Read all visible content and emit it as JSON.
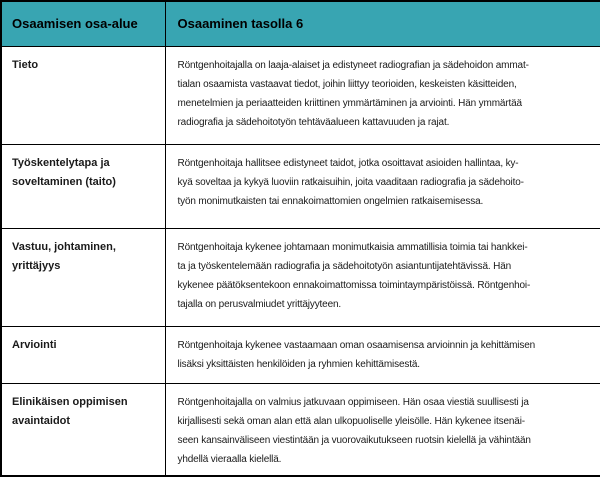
{
  "colors": {
    "header_bg": "#38A5B2",
    "border": "#000000",
    "body_bg": "#FFFFFF",
    "text": "#1A1A1A"
  },
  "table": {
    "headers": [
      "Osaamisen osa-alue",
      "Osaaminen tasolla 6"
    ],
    "rows": [
      {
        "area": "Tieto",
        "description": "Röntgenhoitajalla on laaja-alaiset ja edistyneet radiografian ja sädehoidon ammat-\ntialan osaamista vastaavat tiedot, joihin liittyy teorioiden, keskeisten käsitteiden,\nmenetelmien ja periaatteiden kriittinen ymmärtäminen ja arviointi. Hän ymmärtää\nradiografia ja sädehoitotyön tehtäväalueen kattavuuden ja rajat."
      },
      {
        "area": "Työskentelytapa ja\nsoveltaminen (taito)",
        "description": "Röntgenhoitaja hallitsee edistyneet taidot, jotka osoittavat asioiden hallintaa, ky-\nkyä soveltaa ja kykyä luoviin ratkaisuihin, joita vaaditaan radiografia ja sädehoito-\ntyön monimutkaisten tai ennakoimattomien ongelmien ratkaisemisessa."
      },
      {
        "area": "Vastuu, johtaminen,\nyrittäjyys",
        "description": "Röntgenhoitaja kykenee johtamaan monimutkaisia ammatillisia toimia tai hankkei-\nta ja työskentelemään radiografia ja sädehoitotyön asiantuntijatehtävissä. Hän\nkykenee päätöksentekoon ennakoimattomissa toimintaympäristöissä. Röntgenhoi-\ntajalla on perusvalmiudet yrittäjyyteen."
      },
      {
        "area": "Arviointi",
        "description": "Röntgenhoitaja kykenee vastaamaan oman osaamisensa arvioinnin ja kehittämisen\nlisäksi yksittäisten henkilöiden ja ryhmien kehittämisestä."
      },
      {
        "area": "Elinikäisen oppimisen\navaintaidot",
        "description": "Röntgenhoitajalla on valmius jatkuvaan oppimiseen. Hän osaa viestiä suullisesti ja\nkirjallisesti sekä oman alan että alan ulkopuoliselle yleisölle. Hän kykenee itsenäi-\nseen kansainväliseen viestintään ja vuorovaikutukseen ruotsin kielellä ja vähintään\nyhdellä vieraalla kielellä."
      }
    ]
  }
}
